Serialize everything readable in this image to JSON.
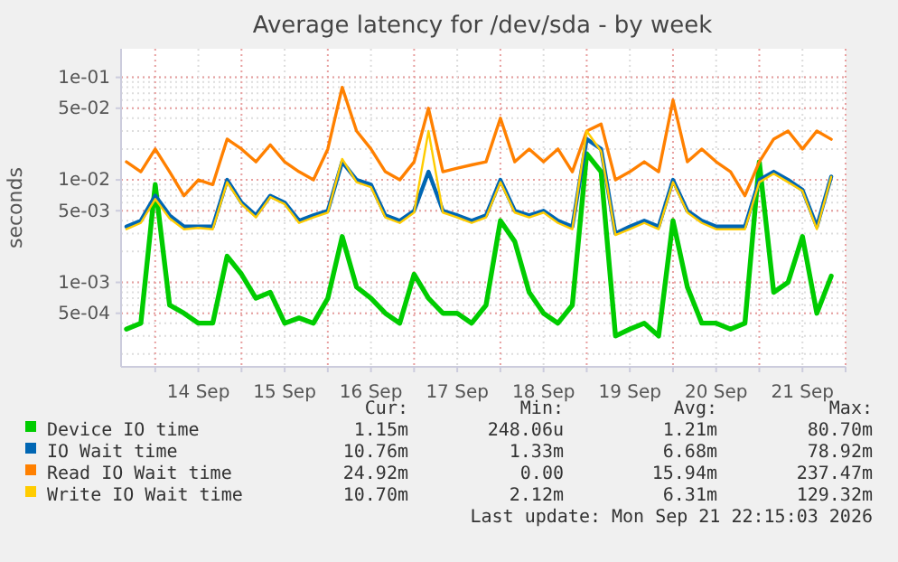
{
  "chart_data": {
    "type": "line",
    "title": "Average latency for /dev/sda - by week",
    "ylabel": "seconds",
    "log": true,
    "grid": true,
    "legend": "bottom",
    "x": [
      "2026-09-13T16:00",
      "2026-09-13T20:00",
      "2026-09-14T00:00",
      "2026-09-14T04:00",
      "2026-09-14T08:00",
      "2026-09-14T12:00",
      "2026-09-14T16:00",
      "2026-09-14T20:00",
      "2026-09-15T00:00",
      "2026-09-15T04:00",
      "2026-09-15T08:00",
      "2026-09-15T12:00",
      "2026-09-15T16:00",
      "2026-09-15T20:00",
      "2026-09-16T00:00",
      "2026-09-16T04:00",
      "2026-09-16T08:00",
      "2026-09-16T12:00",
      "2026-09-16T16:00",
      "2026-09-16T20:00",
      "2026-09-17T00:00",
      "2026-09-17T04:00",
      "2026-09-17T08:00",
      "2026-09-17T12:00",
      "2026-09-17T16:00",
      "2026-09-17T20:00",
      "2026-09-18T00:00",
      "2026-09-18T04:00",
      "2026-09-18T08:00",
      "2026-09-18T12:00",
      "2026-09-18T16:00",
      "2026-09-18T20:00",
      "2026-09-19T00:00",
      "2026-09-19T04:00",
      "2026-09-19T08:00",
      "2026-09-19T12:00",
      "2026-09-19T16:00",
      "2026-09-19T20:00",
      "2026-09-20T00:00",
      "2026-09-20T04:00",
      "2026-09-20T08:00",
      "2026-09-20T12:00",
      "2026-09-20T16:00",
      "2026-09-20T20:00",
      "2026-09-21T00:00",
      "2026-09-21T04:00",
      "2026-09-21T08:00",
      "2026-09-21T12:00",
      "2026-09-21T16:00",
      "2026-09-21T20:00"
    ],
    "xlim": [
      "2026-09-13T14:30",
      "2026-09-22T00:00"
    ],
    "xticks": [
      {
        "value": "2026-09-14T00:00",
        "label": null
      },
      {
        "value": "2026-09-14T12:00",
        "label": "14 Sep"
      },
      {
        "value": "2026-09-15T00:00",
        "label": null
      },
      {
        "value": "2026-09-15T12:00",
        "label": "15 Sep"
      },
      {
        "value": "2026-09-16T00:00",
        "label": null
      },
      {
        "value": "2026-09-16T12:00",
        "label": "16 Sep"
      },
      {
        "value": "2026-09-17T00:00",
        "label": null
      },
      {
        "value": "2026-09-17T12:00",
        "label": "17 Sep"
      },
      {
        "value": "2026-09-18T00:00",
        "label": null
      },
      {
        "value": "2026-09-18T12:00",
        "label": "18 Sep"
      },
      {
        "value": "2026-09-19T00:00",
        "label": null
      },
      {
        "value": "2026-09-19T12:00",
        "label": "19 Sep"
      },
      {
        "value": "2026-09-20T00:00",
        "label": null
      },
      {
        "value": "2026-09-20T12:00",
        "label": "20 Sep"
      },
      {
        "value": "2026-09-21T00:00",
        "label": null
      },
      {
        "value": "2026-09-21T12:00",
        "label": "21 Sep"
      },
      {
        "value": "2026-09-22T00:00",
        "label": null
      }
    ],
    "ylim": [
      0.00015,
      0.19
    ],
    "yticks": [
      {
        "value": 0.0005,
        "label": "5e-04"
      },
      {
        "value": 0.001,
        "label": "1e-03"
      },
      {
        "value": 0.005,
        "label": "5e-03"
      },
      {
        "value": 0.01,
        "label": "1e-02"
      },
      {
        "value": 0.05,
        "label": "5e-02"
      },
      {
        "value": 0.1,
        "label": "1e-01"
      }
    ],
    "series": [
      {
        "name": "Device IO time",
        "color": "#00cc00",
        "values": [
          0.00035,
          0.0004,
          0.009,
          0.0006,
          0.0005,
          0.0004,
          0.0004,
          0.0018,
          0.0012,
          0.0007,
          0.0008,
          0.0004,
          0.00045,
          0.0004,
          0.0007,
          0.0028,
          0.0009,
          0.0007,
          0.0005,
          0.0004,
          0.0012,
          0.0007,
          0.0005,
          0.0005,
          0.0004,
          0.0006,
          0.004,
          0.0025,
          0.0008,
          0.0005,
          0.0004,
          0.0006,
          0.018,
          0.012,
          0.0003,
          0.00035,
          0.0004,
          0.0003,
          0.004,
          0.0009,
          0.0004,
          0.0004,
          0.00035,
          0.0004,
          0.015,
          0.0008,
          0.001,
          0.0028,
          0.0005,
          0.00115
        ]
      },
      {
        "name": "IO Wait time",
        "color": "#0066b3",
        "values": [
          0.0035,
          0.004,
          0.007,
          0.0045,
          0.0035,
          0.0035,
          0.0035,
          0.01,
          0.006,
          0.0045,
          0.007,
          0.006,
          0.004,
          0.0045,
          0.005,
          0.015,
          0.01,
          0.009,
          0.0045,
          0.004,
          0.005,
          0.012,
          0.005,
          0.0045,
          0.004,
          0.0045,
          0.01,
          0.005,
          0.0045,
          0.005,
          0.004,
          0.0035,
          0.025,
          0.02,
          0.003,
          0.0035,
          0.004,
          0.0035,
          0.01,
          0.005,
          0.004,
          0.0035,
          0.0035,
          0.0035,
          0.01,
          0.012,
          0.01,
          0.008,
          0.0035,
          0.01076
        ]
      },
      {
        "name": "Read IO Wait time",
        "color": "#ff8000",
        "values": [
          0.015,
          0.012,
          0.02,
          0.012,
          0.007,
          0.01,
          0.009,
          0.025,
          0.02,
          0.015,
          0.022,
          0.015,
          0.012,
          0.01,
          0.02,
          0.08,
          0.03,
          0.02,
          0.012,
          0.01,
          0.015,
          0.05,
          0.012,
          0.013,
          0.014,
          0.015,
          0.04,
          0.015,
          0.02,
          0.015,
          0.02,
          0.012,
          0.03,
          0.035,
          0.01,
          0.012,
          0.015,
          0.012,
          0.06,
          0.015,
          0.02,
          0.015,
          0.012,
          0.007,
          0.015,
          0.025,
          0.03,
          0.02,
          0.03,
          0.0249
        ]
      },
      {
        "name": "Write IO Wait time",
        "color": "#ffcc00",
        "values": [
          0.0033,
          0.0038,
          0.0065,
          0.0042,
          0.0033,
          0.0034,
          0.0033,
          0.0095,
          0.0058,
          0.0043,
          0.0068,
          0.0058,
          0.0038,
          0.0043,
          0.0048,
          0.016,
          0.0095,
          0.0085,
          0.0043,
          0.0038,
          0.0048,
          0.03,
          0.0048,
          0.0043,
          0.0038,
          0.0043,
          0.0095,
          0.0048,
          0.0043,
          0.0048,
          0.0038,
          0.0033,
          0.03,
          0.019,
          0.0029,
          0.0033,
          0.0038,
          0.0033,
          0.0095,
          0.0048,
          0.0038,
          0.0033,
          0.0033,
          0.0033,
          0.0095,
          0.0115,
          0.0095,
          0.0078,
          0.0033,
          0.0107
        ]
      }
    ],
    "annotations": [
      "Cur:",
      "Min:",
      "Avg:",
      "Max:",
      "1.15m",
      "248.06u",
      "1.21m",
      "80.70m",
      "10.76m",
      "1.33m",
      "6.68m",
      "78.92m",
      "24.92m",
      "0.00",
      "15.94m",
      "237.47m",
      "10.70m",
      "2.12m",
      "6.31m",
      "129.32m",
      "Last update: Mon Sep 21 22:15:03 2026"
    ]
  }
}
